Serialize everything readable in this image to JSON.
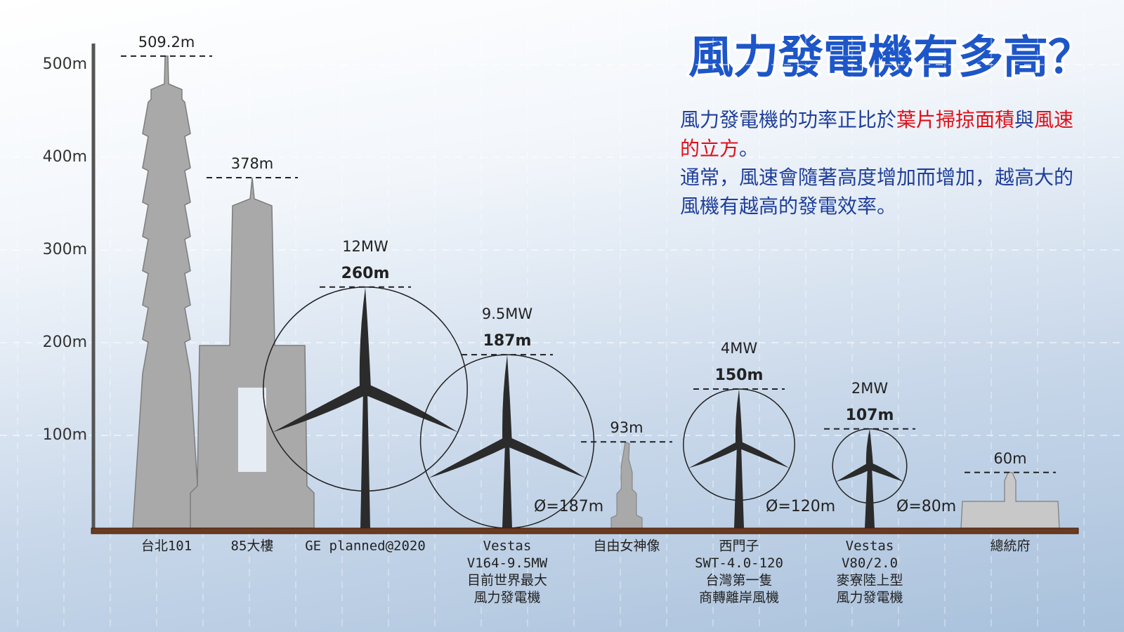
{
  "chart_data": {
    "type": "height-comparison",
    "title": "風力發電機有多高？",
    "description": [
      [
        {
          "text": "風力發電機的功率正比於",
          "color": "#1f3f9a"
        },
        {
          "text": "葉片掃掠面積",
          "color": "#e0101a"
        },
        {
          "text": "與",
          "color": "#1f3f9a"
        },
        {
          "text": "風速的立方",
          "color": "#e0101a"
        },
        {
          "text": "。",
          "color": "#1f3f9a"
        }
      ],
      [
        {
          "text": "通常，風速會隨著高度增加而增加，越高大的風機有越高的發電效率。",
          "color": "#1f3f9a"
        }
      ]
    ],
    "categories": [
      [
        "台北101"
      ],
      [
        "85大樓"
      ],
      [
        "GE planned@2020"
      ],
      [
        "Vestas",
        "V164-9.5MW",
        "目前世界最大",
        "風力發電機"
      ],
      [
        "自由女神像"
      ],
      [
        "西門子",
        "SWT-4.0-120",
        "台灣第一隻",
        "商轉離岸風機"
      ],
      [
        "Vestas",
        "V80/2.0",
        "麥寮陸上型",
        "風力發電機"
      ],
      [
        "總統府"
      ]
    ],
    "kinds": [
      "tower101",
      "tower85",
      "turbine",
      "turbine",
      "statue",
      "turbine",
      "turbine",
      "palace"
    ],
    "values": [
      509.2,
      378,
      260,
      187,
      93,
      150,
      107,
      60
    ],
    "value_labels": [
      "509.2m",
      "378m",
      "260m",
      "187m",
      "93m",
      "150m",
      "107m",
      "60m"
    ],
    "power_labels": [
      null,
      null,
      "12MW",
      "9.5MW",
      null,
      "4MW",
      "2MW",
      null
    ],
    "rotor_diameters": [
      null,
      null,
      220,
      187,
      null,
      120,
      80,
      null
    ],
    "rotor_labels": [
      null,
      null,
      null,
      "Ø=187m",
      null,
      "Ø=120m",
      "Ø=80m",
      null
    ],
    "ylim": [
      0,
      500
    ],
    "yticks": [
      {
        "value": 100,
        "label": "100m"
      },
      {
        "value": 200,
        "label": "200m"
      },
      {
        "value": 300,
        "label": "300m"
      },
      {
        "value": 400,
        "label": "400m"
      },
      {
        "value": 500,
        "label": "500m"
      }
    ],
    "grid": true,
    "title_color": "#1d56c8",
    "turbine_color": "#2b2b2b",
    "building_color": "#a9a9a9"
  }
}
